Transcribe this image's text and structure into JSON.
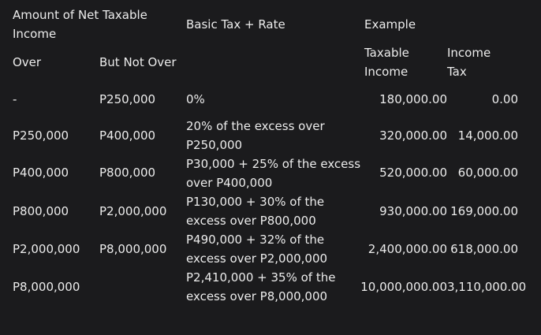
{
  "headers": {
    "group": "Amount of Net Taxable Income",
    "over": "Over",
    "but_not_over": "But Not Over",
    "basic_tax_rate": "Basic Tax + Rate",
    "example": "Example",
    "taxable_income": "Taxable Income",
    "income_tax": "Income Tax"
  },
  "rows": [
    {
      "over": "-",
      "but_not_over": "P250,000",
      "basic": "0%",
      "taxable": "180,000.00",
      "tax": "0.00"
    },
    {
      "over": "P250,000",
      "but_not_over": "P400,000",
      "basic": "20% of the excess over P250,000",
      "taxable": "320,000.00",
      "tax": "14,000.00"
    },
    {
      "over": "P400,000",
      "but_not_over": "P800,000",
      "basic": "P30,000 + 25% of the excess over P400,000",
      "taxable": "520,000.00",
      "tax": "60,000.00"
    },
    {
      "over": "P800,000",
      "but_not_over": "P2,000,000",
      "basic": "P130,000 + 30% of the excess over P800,000",
      "taxable": "930,000.00",
      "tax": "169,000.00"
    },
    {
      "over": "P2,000,000",
      "but_not_over": "P8,000,000",
      "basic": "P490,000 + 32% of the excess over P2,000,000",
      "taxable": "2,400,000.00",
      "tax": "618,000.00"
    },
    {
      "over": "P8,000,000",
      "but_not_over": "",
      "basic": "P2,410,000 + 35% of the excess over P8,000,000",
      "taxable": "10,000,000.00",
      "tax": "3,110,000.00"
    }
  ]
}
